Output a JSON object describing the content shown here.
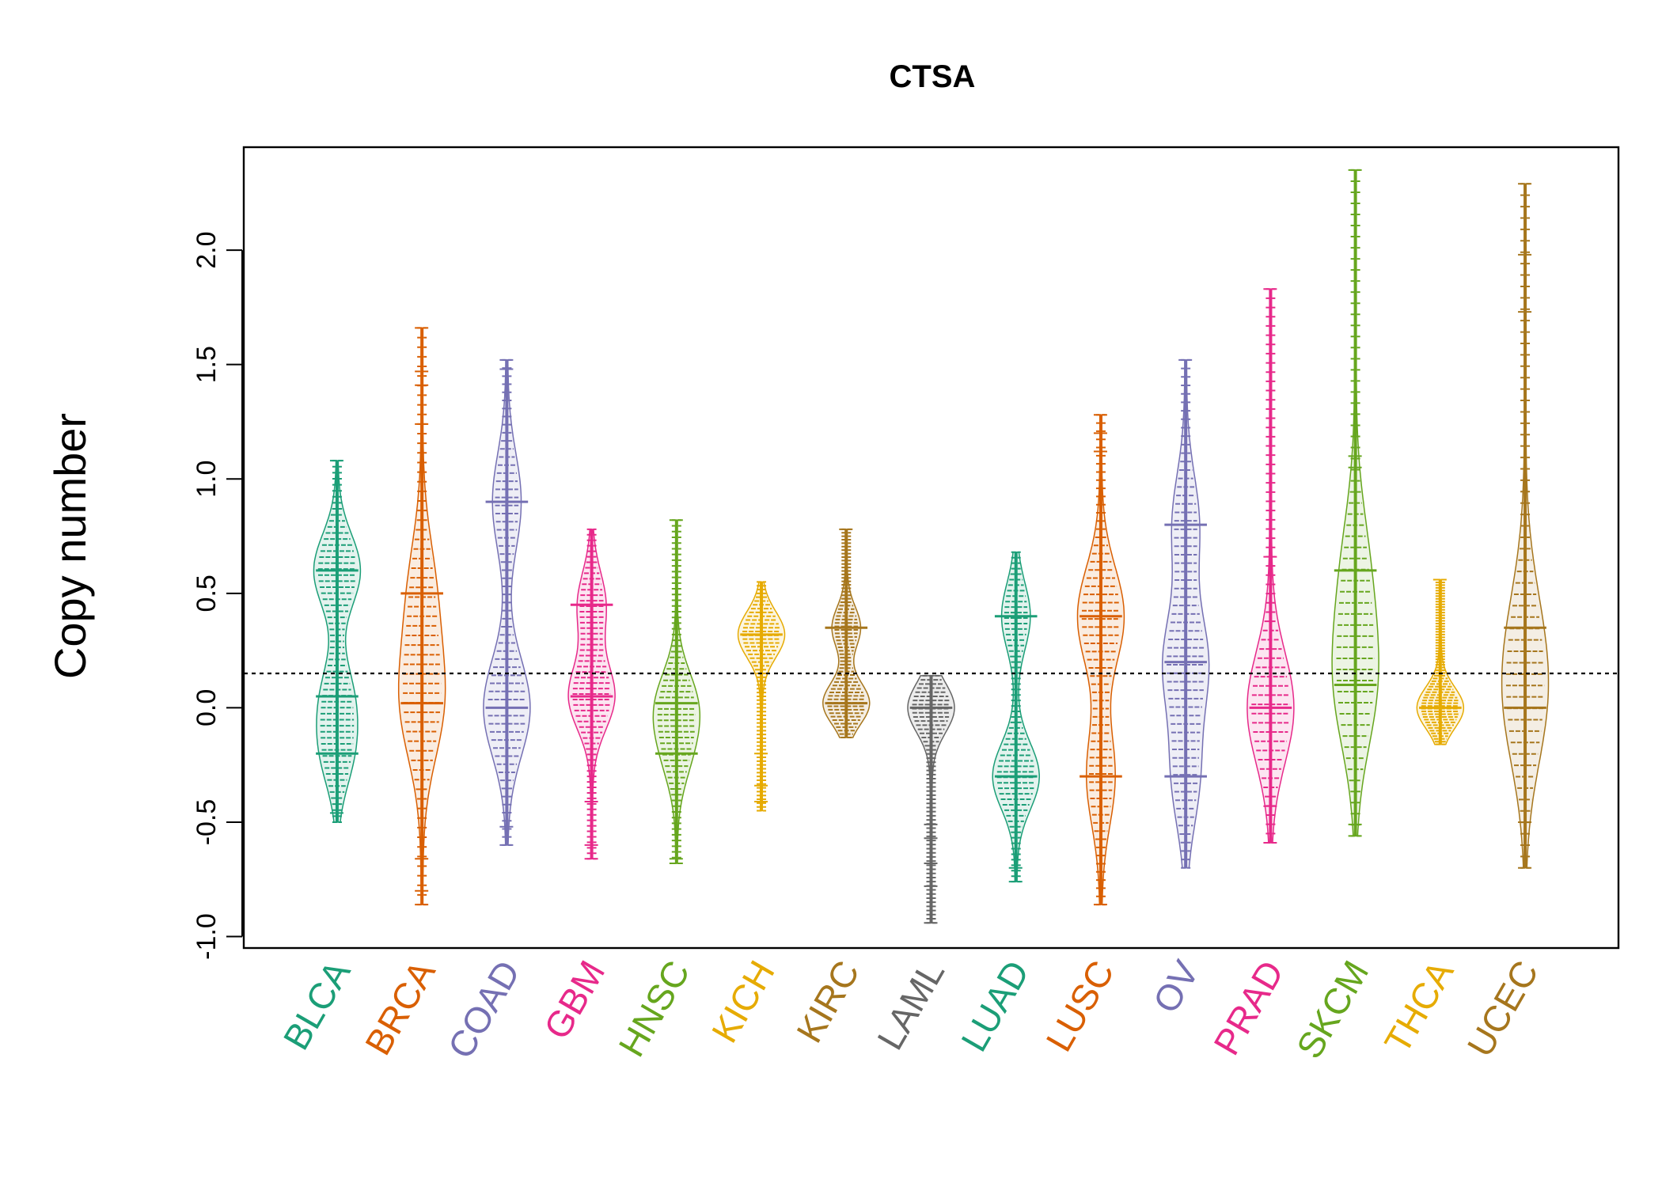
{
  "chart_data": {
    "type": "beanplot",
    "title": "CTSA",
    "ylabel": "Copy number",
    "xlabel": "",
    "ylim": [
      -1.05,
      2.45
    ],
    "yticks": [
      -1.0,
      -0.5,
      0.0,
      0.5,
      1.0,
      1.5,
      2.0
    ],
    "ytick_labels": [
      "-1.0",
      "-0.5",
      "0.0",
      "0.5",
      "1.0",
      "1.5",
      "2.0"
    ],
    "reference_line": 0.15,
    "grid": false,
    "legend": "none",
    "categories": [
      "BLCA",
      "BRCA",
      "COAD",
      "GBM",
      "HNSC",
      "KICH",
      "KIRC",
      "LAML",
      "LUAD",
      "LUSC",
      "OV",
      "PRAD",
      "SKCM",
      "THCA",
      "UCEC"
    ],
    "colors": [
      "#1b9e77",
      "#d95f02",
      "#7570b3",
      "#e7298a",
      "#66a61e",
      "#e6ab02",
      "#a6761d",
      "#666666",
      "#1b9e77",
      "#d95f02",
      "#7570b3",
      "#e7298a",
      "#66a61e",
      "#e6ab02",
      "#a6761d"
    ],
    "series": [
      {
        "category": "BLCA",
        "min": -0.5,
        "max": 1.08,
        "modes": [
          0.6,
          0.05,
          -0.2
        ],
        "outliers": [
          1.08,
          -0.46
        ]
      },
      {
        "category": "BRCA",
        "min": -0.86,
        "max": 1.66,
        "modes": [
          0.02,
          0.5
        ],
        "outliers": [
          1.66,
          1.47,
          1.41,
          1.24,
          -0.66,
          -0.8,
          -0.86
        ]
      },
      {
        "category": "COAD",
        "min": -0.6,
        "max": 1.52,
        "modes": [
          0.0,
          0.9
        ],
        "outliers": [
          1.52,
          1.48,
          -0.52,
          -0.6
        ]
      },
      {
        "category": "GBM",
        "min": -0.66,
        "max": 0.78,
        "modes": [
          0.05,
          0.45
        ],
        "outliers": [
          -0.41,
          -0.6,
          -0.66
        ]
      },
      {
        "category": "HNSC",
        "min": -0.68,
        "max": 0.82,
        "modes": [
          0.02,
          -0.2
        ],
        "outliers": [
          0.82,
          -0.66,
          -0.68
        ]
      },
      {
        "category": "KICH",
        "min": -0.45,
        "max": 0.55,
        "modes": [
          0.32
        ],
        "outliers": [
          -0.2,
          -0.34,
          -0.41
        ]
      },
      {
        "category": "KIRC",
        "min": -0.13,
        "max": 0.78,
        "modes": [
          0.02,
          0.35
        ],
        "outliers": [
          0.78
        ]
      },
      {
        "category": "LAML",
        "min": -0.94,
        "max": 0.14,
        "modes": [
          0.0
        ],
        "outliers": [
          -0.51,
          -0.57,
          -0.68,
          -0.78,
          -0.94
        ]
      },
      {
        "category": "LUAD",
        "min": -0.76,
        "max": 0.68,
        "modes": [
          -0.3,
          0.4
        ],
        "outliers": [
          -0.7,
          -0.76
        ]
      },
      {
        "category": "LUSC",
        "min": -0.86,
        "max": 1.28,
        "modes": [
          0.4,
          -0.3
        ],
        "outliers": [
          1.28,
          1.2,
          1.12,
          -0.86
        ]
      },
      {
        "category": "OV",
        "min": -0.7,
        "max": 1.52,
        "modes": [
          0.2,
          0.8,
          -0.3
        ],
        "outliers": [
          1.52
        ]
      },
      {
        "category": "PRAD",
        "min": -0.59,
        "max": 1.83,
        "modes": [
          0.0
        ],
        "outliers": [
          1.83,
          0.66,
          -0.43,
          -0.59
        ]
      },
      {
        "category": "SKCM",
        "min": -0.56,
        "max": 2.35,
        "modes": [
          0.1,
          0.6
        ],
        "outliers": [
          2.35,
          1.1,
          1.05,
          -0.51,
          -0.56
        ]
      },
      {
        "category": "THCA",
        "min": -0.16,
        "max": 0.56,
        "modes": [
          0.0
        ],
        "outliers": [
          0.56
        ]
      },
      {
        "category": "UCEC",
        "min": -0.7,
        "max": 2.29,
        "modes": [
          0.0,
          0.35
        ],
        "outliers": [
          2.29,
          1.98,
          1.73,
          -0.5,
          -0.7
        ]
      }
    ]
  }
}
